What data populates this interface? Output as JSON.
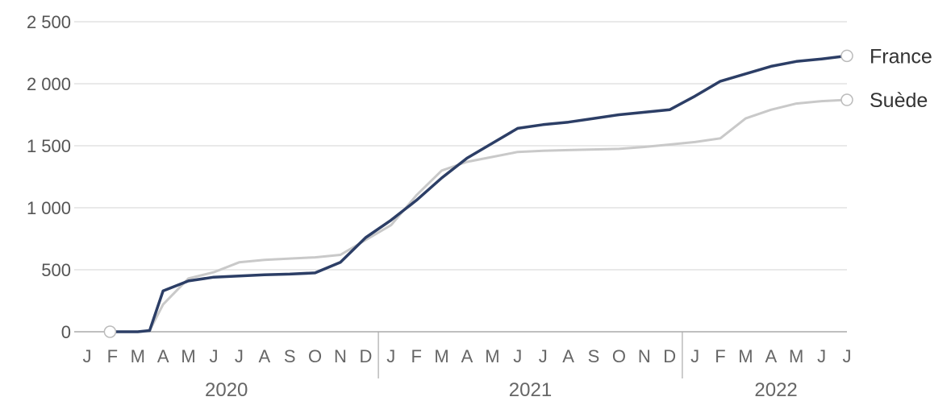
{
  "chart_data": {
    "type": "line",
    "y_ticks": [
      "0",
      "500",
      "1 000",
      "1 500",
      "2 000",
      "2 500"
    ],
    "y_tick_values": [
      0,
      500,
      1000,
      1500,
      2000,
      2500
    ],
    "ylim": [
      0,
      2500
    ],
    "month_labels": [
      "J",
      "F",
      "M",
      "A",
      "M",
      "J",
      "J",
      "A",
      "S",
      "O",
      "N",
      "D",
      "J",
      "F",
      "M",
      "A",
      "M",
      "J",
      "J",
      "A",
      "S",
      "O",
      "N",
      "D",
      "J",
      "F",
      "M",
      "A",
      "M",
      "J",
      "J"
    ],
    "years": [
      "2020",
      "2021",
      "2022"
    ],
    "grid": true,
    "legend": "end-of-line labels, right",
    "colors": {
      "france": "#2c3e66",
      "suede": "#c9c9c9",
      "grid": "#e2e2e2",
      "axis": "#aaaaaa"
    },
    "series": [
      {
        "name": "France",
        "points": [
          [
            "2020-02-01",
            0
          ],
          [
            "2020-03-01",
            0
          ],
          [
            "2020-03-15",
            10
          ],
          [
            "2020-04-01",
            330
          ],
          [
            "2020-05-01",
            410
          ],
          [
            "2020-06-01",
            440
          ],
          [
            "2020-07-01",
            450
          ],
          [
            "2020-08-01",
            460
          ],
          [
            "2020-09-01",
            465
          ],
          [
            "2020-10-01",
            475
          ],
          [
            "2020-11-01",
            560
          ],
          [
            "2020-12-01",
            760
          ],
          [
            "2021-01-01",
            900
          ],
          [
            "2021-02-01",
            1060
          ],
          [
            "2021-03-01",
            1240
          ],
          [
            "2021-04-01",
            1400
          ],
          [
            "2021-05-01",
            1520
          ],
          [
            "2021-06-01",
            1640
          ],
          [
            "2021-07-01",
            1670
          ],
          [
            "2021-08-01",
            1690
          ],
          [
            "2021-09-01",
            1720
          ],
          [
            "2021-10-01",
            1750
          ],
          [
            "2021-11-01",
            1770
          ],
          [
            "2021-12-01",
            1790
          ],
          [
            "2022-01-01",
            1900
          ],
          [
            "2022-02-01",
            2020
          ],
          [
            "2022-03-01",
            2080
          ],
          [
            "2022-04-01",
            2140
          ],
          [
            "2022-05-01",
            2180
          ],
          [
            "2022-06-01",
            2200
          ],
          [
            "2022-07-01",
            2225
          ]
        ]
      },
      {
        "name": "Suède",
        "points": [
          [
            "2020-02-01",
            0
          ],
          [
            "2020-03-01",
            0
          ],
          [
            "2020-03-15",
            10
          ],
          [
            "2020-04-01",
            220
          ],
          [
            "2020-05-01",
            430
          ],
          [
            "2020-06-01",
            480
          ],
          [
            "2020-07-01",
            560
          ],
          [
            "2020-08-01",
            580
          ],
          [
            "2020-09-01",
            590
          ],
          [
            "2020-10-01",
            600
          ],
          [
            "2020-11-01",
            620
          ],
          [
            "2020-12-01",
            740
          ],
          [
            "2021-01-01",
            860
          ],
          [
            "2021-02-01",
            1100
          ],
          [
            "2021-03-01",
            1300
          ],
          [
            "2021-04-01",
            1370
          ],
          [
            "2021-05-01",
            1410
          ],
          [
            "2021-06-01",
            1450
          ],
          [
            "2021-07-01",
            1460
          ],
          [
            "2021-08-01",
            1465
          ],
          [
            "2021-09-01",
            1470
          ],
          [
            "2021-10-01",
            1475
          ],
          [
            "2021-11-01",
            1490
          ],
          [
            "2021-12-01",
            1510
          ],
          [
            "2022-01-01",
            1530
          ],
          [
            "2022-02-01",
            1560
          ],
          [
            "2022-03-01",
            1720
          ],
          [
            "2022-04-01",
            1790
          ],
          [
            "2022-05-01",
            1840
          ],
          [
            "2022-06-01",
            1860
          ],
          [
            "2022-07-01",
            1870
          ]
        ]
      }
    ]
  }
}
